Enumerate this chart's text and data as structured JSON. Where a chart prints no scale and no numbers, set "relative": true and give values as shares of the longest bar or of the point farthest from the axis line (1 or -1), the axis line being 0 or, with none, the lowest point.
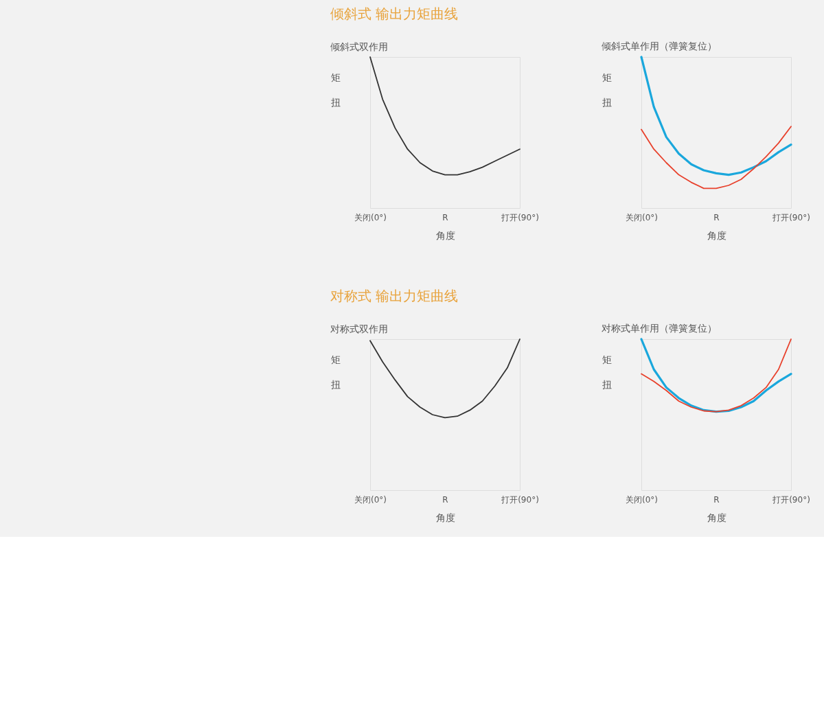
{
  "chart_data": [
    {
      "type": "line",
      "title": "倾斜式双作用",
      "xlabel": "角度",
      "ylabel": "矩扭",
      "relative": true,
      "annotations": [
        "倾斜式 输出力矩曲线"
      ],
      "categories": [
        "关闭(0°)",
        null,
        null,
        null,
        null,
        null,
        "R",
        null,
        null,
        null,
        null,
        null,
        "打开(90°)"
      ],
      "grid": false,
      "marker": "none",
      "line_style": "solid",
      "series": [
        {
          "color": "#333333",
          "values": [
            1.0,
            0.72,
            0.53,
            0.39,
            0.3,
            0.245,
            0.22,
            0.22,
            0.24,
            0.27,
            0.31,
            0.35,
            0.39
          ]
        }
      ]
    },
    {
      "type": "line",
      "title": "倾斜式单作用（弹簧复位）",
      "xlabel": "角度",
      "ylabel": "矩扭",
      "relative": true,
      "categories": [
        "关闭(0°)",
        null,
        null,
        null,
        null,
        null,
        "R",
        null,
        null,
        null,
        null,
        null,
        "打开(90°)"
      ],
      "grid": false,
      "marker": "none",
      "line_style": "solid",
      "series": [
        {
          "color": "#1aa7dc",
          "values": [
            1.0,
            0.67,
            0.47,
            0.36,
            0.29,
            0.25,
            0.23,
            0.22,
            0.235,
            0.27,
            0.31,
            0.37,
            0.42
          ]
        },
        {
          "color": "#e8412c",
          "values": [
            0.52,
            0.39,
            0.3,
            0.22,
            0.17,
            0.13,
            0.13,
            0.15,
            0.19,
            0.26,
            0.34,
            0.43,
            0.54
          ]
        }
      ]
    },
    {
      "type": "line",
      "title": "对称式双作用",
      "xlabel": "角度",
      "ylabel": "矩扭",
      "relative": true,
      "annotations": [
        "对称式 输出力矩曲线"
      ],
      "categories": [
        "关闭(0°)",
        null,
        null,
        null,
        null,
        null,
        "R",
        null,
        null,
        null,
        null,
        null,
        "打开(90°)"
      ],
      "grid": false,
      "marker": "none",
      "line_style": "solid",
      "series": [
        {
          "color": "#333333",
          "values": [
            0.99,
            0.85,
            0.73,
            0.62,
            0.55,
            0.5,
            0.48,
            0.49,
            0.53,
            0.59,
            0.69,
            0.81,
            1.0
          ]
        }
      ]
    },
    {
      "type": "line",
      "title": "对称式单作用（弹簧复位）",
      "xlabel": "角度",
      "ylabel": "矩扭",
      "relative": true,
      "categories": [
        "关闭(0°)",
        null,
        null,
        null,
        null,
        null,
        "R",
        null,
        null,
        null,
        null,
        null,
        "打开(90°)"
      ],
      "grid": false,
      "marker": "none",
      "line_style": "solid",
      "series": [
        {
          "color": "#1aa7dc",
          "values": [
            1.0,
            0.8,
            0.68,
            0.61,
            0.56,
            0.53,
            0.52,
            0.525,
            0.55,
            0.59,
            0.66,
            0.72,
            0.77
          ]
        },
        {
          "color": "#e8412c",
          "values": [
            0.77,
            0.72,
            0.66,
            0.59,
            0.55,
            0.525,
            0.52,
            0.53,
            0.56,
            0.61,
            0.68,
            0.8,
            1.0
          ]
        }
      ]
    }
  ]
}
